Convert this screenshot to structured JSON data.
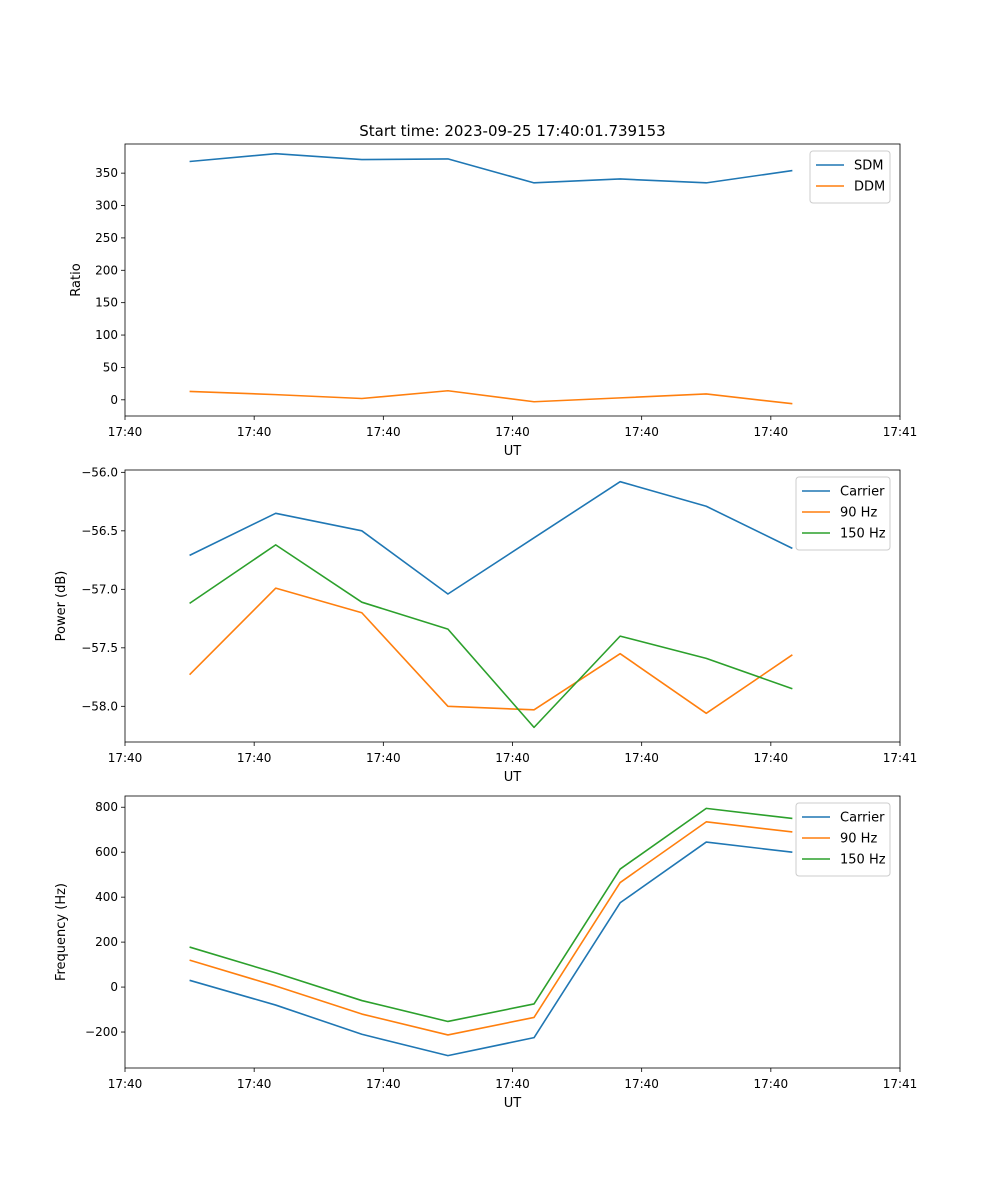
{
  "figure_title": "Start time: 2023-09-25 17:40:01.739153",
  "chart_data": [
    {
      "type": "line",
      "title": "Start time: 2023-09-25 17:40:01.739153",
      "xlabel": "UT",
      "ylabel": "Ratio",
      "x": [
        1,
        2,
        3,
        4,
        5,
        6,
        7,
        8
      ],
      "xlim": [
        0.25,
        9.25
      ],
      "xticks": [
        0.25,
        1.75,
        3.25,
        4.75,
        6.25,
        7.75,
        9.25
      ],
      "xtick_labels": [
        "17:40",
        "17:40",
        "17:40",
        "17:40",
        "17:40",
        "17:40",
        "17:41"
      ],
      "ylim": [
        -25,
        395
      ],
      "yticks": [
        0,
        50,
        100,
        150,
        200,
        250,
        300,
        350
      ],
      "yticklabels": [
        "0",
        "50",
        "100",
        "150",
        "200",
        "250",
        "300",
        "350"
      ],
      "legend_position": "upper right",
      "series": [
        {
          "name": "SDM",
          "color": "#1f77b4",
          "values": [
            368,
            380,
            371,
            372,
            335,
            341,
            335,
            354
          ]
        },
        {
          "name": "DDM",
          "color": "#ff7f0e",
          "values": [
            13,
            8,
            2,
            14,
            -3,
            3,
            9,
            -6
          ]
        }
      ]
    },
    {
      "type": "line",
      "title": "",
      "xlabel": "UT",
      "ylabel": "Power (dB)",
      "x": [
        1,
        2,
        3,
        4,
        5,
        6,
        7,
        8
      ],
      "xlim": [
        0.25,
        9.25
      ],
      "xticks": [
        0.25,
        1.75,
        3.25,
        4.75,
        6.25,
        7.75,
        9.25
      ],
      "xtick_labels": [
        "17:40",
        "17:40",
        "17:40",
        "17:40",
        "17:40",
        "17:40",
        "17:41"
      ],
      "ylim": [
        -58.305,
        -55.98
      ],
      "yticks": [
        -58.0,
        -57.5,
        -57.0,
        -56.5,
        -56.0
      ],
      "yticklabels": [
        "−58.0",
        "−57.5",
        "−57.0",
        "−56.5",
        "−56.0"
      ],
      "legend_position": "upper right",
      "series": [
        {
          "name": "Carrier",
          "color": "#1f77b4",
          "values": [
            -56.71,
            -56.35,
            -56.5,
            -57.04,
            -56.56,
            -56.08,
            -56.29,
            -56.65
          ]
        },
        {
          "name": "90 Hz",
          "color": "#ff7f0e",
          "values": [
            -57.73,
            -56.99,
            -57.2,
            -58.0,
            -58.03,
            -57.55,
            -58.06,
            -57.56
          ]
        },
        {
          "name": "150 Hz",
          "color": "#2ca02c",
          "values": [
            -57.12,
            -56.62,
            -57.11,
            -57.34,
            -58.18,
            -57.4,
            -57.59,
            -57.85
          ]
        }
      ]
    },
    {
      "type": "line",
      "title": "",
      "xlabel": "UT",
      "ylabel": "Frequency (Hz)",
      "x": [
        1,
        2,
        3,
        4,
        5,
        6,
        7,
        8
      ],
      "xlim": [
        0.25,
        9.25
      ],
      "xticks": [
        0.25,
        1.75,
        3.25,
        4.75,
        6.25,
        7.75,
        9.25
      ],
      "xtick_labels": [
        "17:40",
        "17:40",
        "17:40",
        "17:40",
        "17:40",
        "17:40",
        "17:41"
      ],
      "ylim": [
        -360,
        850
      ],
      "yticks": [
        -200,
        0,
        200,
        400,
        600,
        800
      ],
      "yticklabels": [
        "−200",
        "0",
        "200",
        "400",
        "600",
        "800"
      ],
      "legend_position": "upper right",
      "series": [
        {
          "name": "Carrier",
          "color": "#1f77b4",
          "values": [
            30,
            -80,
            -210,
            -305,
            -225,
            375,
            645,
            600
          ]
        },
        {
          "name": "90 Hz",
          "color": "#ff7f0e",
          "values": [
            120,
            5,
            -120,
            -213,
            -135,
            465,
            735,
            690
          ]
        },
        {
          "name": "150 Hz",
          "color": "#2ca02c",
          "values": [
            178,
            63,
            -60,
            -153,
            -75,
            525,
            795,
            750
          ]
        }
      ]
    }
  ]
}
